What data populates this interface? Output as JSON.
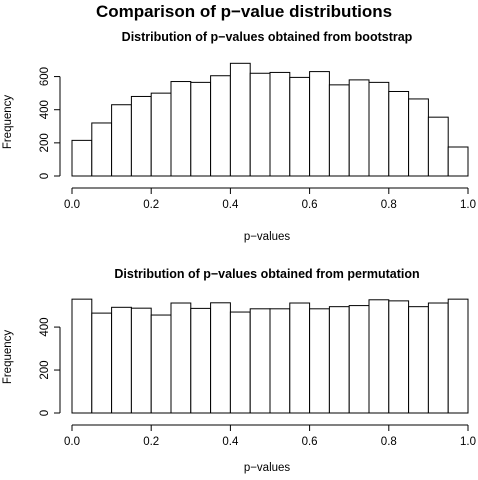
{
  "title": "Comparison of p−value distributions",
  "chart_data": [
    {
      "type": "bar",
      "title": "Distribution of p−values obtained from bootstrap",
      "xlabel": "p−values",
      "ylabel": "Frequency",
      "bin_edges": [
        0,
        0.05,
        0.1,
        0.15,
        0.2,
        0.25,
        0.3,
        0.35,
        0.4,
        0.45,
        0.5,
        0.55,
        0.6,
        0.65,
        0.7,
        0.75,
        0.8,
        0.85,
        0.9,
        0.95,
        1.0
      ],
      "values": [
        215,
        320,
        430,
        480,
        500,
        570,
        565,
        605,
        680,
        620,
        625,
        595,
        630,
        550,
        580,
        565,
        510,
        465,
        355,
        175
      ],
      "xlim": [
        0,
        1
      ],
      "ylim": [
        0,
        700
      ],
      "xticks": [
        0,
        0.2,
        0.4,
        0.6,
        0.8,
        1.0
      ],
      "xtick_labels": [
        "0.0",
        "0.2",
        "0.4",
        "0.6",
        "0.8",
        "1.0"
      ],
      "yticks": [
        0,
        200,
        400,
        600
      ],
      "ytick_labels": [
        "0",
        "200",
        "400",
        "600"
      ],
      "grid": false
    },
    {
      "type": "bar",
      "title": "Distribution of p−values obtained from permutation",
      "xlabel": "p−values",
      "ylabel": "Frequency",
      "bin_edges": [
        0,
        0.05,
        0.1,
        0.15,
        0.2,
        0.25,
        0.3,
        0.35,
        0.4,
        0.45,
        0.5,
        0.55,
        0.6,
        0.65,
        0.7,
        0.75,
        0.8,
        0.85,
        0.9,
        0.95,
        1.0
      ],
      "values": [
        530,
        465,
        492,
        488,
        456,
        512,
        487,
        513,
        470,
        485,
        485,
        512,
        485,
        495,
        500,
        527,
        522,
        495,
        512,
        530
      ],
      "xlim": [
        0,
        1
      ],
      "ylim": [
        0,
        540
      ],
      "xticks": [
        0,
        0.2,
        0.4,
        0.6,
        0.8,
        1.0
      ],
      "xtick_labels": [
        "0.0",
        "0.2",
        "0.4",
        "0.6",
        "0.8",
        "1.0"
      ],
      "yticks": [
        0,
        200,
        400
      ],
      "ytick_labels": [
        "0",
        "200",
        "400"
      ],
      "grid": false
    }
  ]
}
